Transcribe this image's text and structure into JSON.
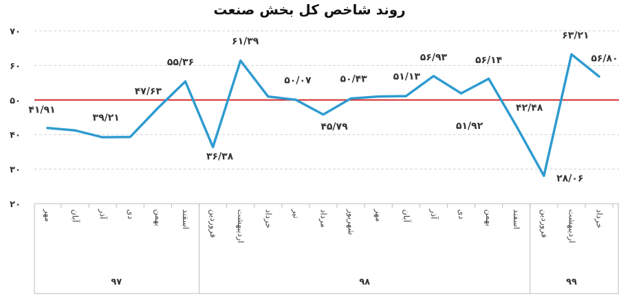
{
  "chart_data": {
    "type": "line",
    "title": "روند شاخص کل بخش صنعت",
    "ylim": [
      20,
      70
    ],
    "yticks": [
      20,
      30,
      40,
      50,
      60,
      70
    ],
    "ytick_labels": [
      "۲۰",
      "۳۰",
      "۴۰",
      "۵۰",
      "۶۰",
      "۷۰"
    ],
    "reference_line": 50,
    "categories": [
      "مهر",
      "آبان",
      "آذر",
      "دی",
      "بهمن",
      "اسفند",
      "فروردین",
      "اردیبهشت",
      "خرداد",
      "تیر",
      "مرداد",
      "شهریور",
      "مهر",
      "آبان",
      "آذر",
      "دی",
      "بهمن",
      "اسفند",
      "فروردین",
      "اردیبهشت",
      "خرداد"
    ],
    "values": [
      41.91,
      41.2,
      39.21,
      39.3,
      47.63,
      55.36,
      36.38,
      61.39,
      51.0,
      50.07,
      45.79,
      50.43,
      51.0,
      51.13,
      56.93,
      51.92,
      56.14,
      42.48,
      28.06,
      63.21,
      56.8
    ],
    "data_labels": [
      "۴۱/۹۱",
      "",
      "۳۹/۲۱",
      "",
      "۴۷/۶۳",
      "۵۵/۳۶",
      "۳۶/۳۸",
      "۶۱/۳۹",
      "",
      "۵۰/۰۷",
      "۴۵/۷۹",
      "۵۰/۴۳",
      "",
      "۵۱/۱۳",
      "۵۶/۹۳",
      "۵۱/۹۲",
      "۵۶/۱۴",
      "۴۲/۴۸",
      "۲۸/۰۶",
      "۶۳/۲۱",
      "۵۶/۸۰"
    ],
    "groups": [
      {
        "label": "۹۷",
        "start": 0,
        "end": 5
      },
      {
        "label": "۹۸",
        "start": 6,
        "end": 17
      },
      {
        "label": "۹۹",
        "start": 18,
        "end": 20
      }
    ],
    "line_color": "#2e9bd0",
    "reference_color": "#d42a2a",
    "grid": true,
    "legend": "none"
  }
}
